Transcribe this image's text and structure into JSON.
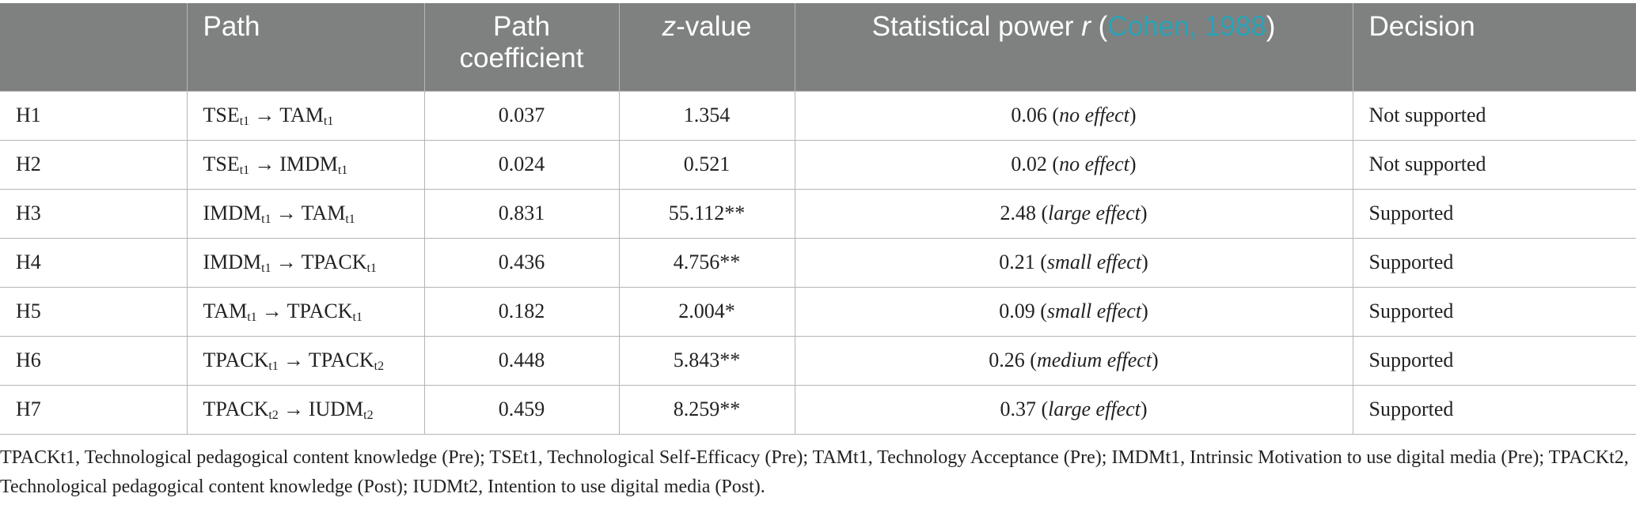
{
  "table": {
    "headers": {
      "id": "",
      "path": "Path",
      "coef": "Path coefficient",
      "z_pre": "z",
      "z_post": "-value",
      "power_pre": "Statistical power ",
      "power_r": "r",
      "power_open": " (",
      "power_cite": "Cohen, 1988",
      "power_close": ")",
      "decision": "Decision"
    },
    "arrow": "→",
    "rows": [
      {
        "id": "H1",
        "from": "TSE",
        "from_sub": "t1",
        "to": "TAM",
        "to_sub": "t1",
        "coef": "0.037",
        "z": "1.354",
        "power_val": "0.06",
        "power_open": " (",
        "power_effect": "no effect",
        "power_close": ")",
        "power_effect_italic": true,
        "decision": "Not supported"
      },
      {
        "id": "H2",
        "from": "TSE",
        "from_sub": "t1",
        "to": "IMDM",
        "to_sub": "t1",
        "coef": "0.024",
        "z": "0.521",
        "power_val": "0.02",
        "power_open": " (",
        "power_effect": "no effect",
        "power_close": ")",
        "power_effect_italic": true,
        "decision": "Not supported"
      },
      {
        "id": "H3",
        "from": "IMDM",
        "from_sub": "t1",
        "to": "TAM",
        "to_sub": "t1",
        "coef": "0.831",
        "z": "55.112**",
        "power_val": "2.48",
        "power_open": " (",
        "power_effect": "large effect",
        "power_close": ")",
        "power_effect_italic": true,
        "decision": "Supported"
      },
      {
        "id": "H4",
        "from": "IMDM",
        "from_sub": "t1",
        "to": "TPACK",
        "to_sub": "t1",
        "coef": "0.436",
        "z": "4.756**",
        "power_val": "0.21",
        "power_open": " (",
        "power_effect": "small effect",
        "power_close": ")",
        "power_effect_italic": true,
        "decision": "Supported"
      },
      {
        "id": "H5",
        "from": "TAM",
        "from_sub": "t1",
        "to": "TPACK",
        "to_sub": "t1",
        "coef": "0.182",
        "z": "2.004*",
        "power_val": "0.09",
        "power_open": " (",
        "power_effect": "small effect",
        "power_close": ")",
        "power_effect_italic": true,
        "decision": "Supported"
      },
      {
        "id": "H6",
        "from": "TPACK",
        "from_sub": "t1",
        "to": "TPACK",
        "to_sub": "t2",
        "coef": "0.448",
        "z": "5.843**",
        "power_val": "0.26",
        "power_open": " (",
        "power_effect": "medium effect",
        "power_close": ")",
        "power_effect_italic": true,
        "decision": "Supported"
      },
      {
        "id": "H7",
        "from": "TPACK",
        "from_sub": "t2",
        "to": "IUDM",
        "to_sub": "t2",
        "coef": "0.459",
        "z": "8.259**",
        "power_val": "0.37",
        "power_open": " (",
        "power_effect": "large effect",
        "power_close": ")",
        "power_effect_italic": true,
        "decision": "Supported"
      }
    ]
  },
  "footnote": "TPACKt1, Technological pedagogical content knowledge (Pre); TSEt1, Technological Self-Efficacy (Pre); TAMt1, Technology Acceptance (Pre); IMDMt1, Intrinsic Motivation to use digital media (Pre); TPACKt2, Technological pedagogical content knowledge (Post); IUDMt2, Intention to use digital media (Post).",
  "colors": {
    "header_bg": "#7f8180",
    "header_text": "#ffffff",
    "citation": "#2aa3b8",
    "grid": "#b5b5b5"
  }
}
